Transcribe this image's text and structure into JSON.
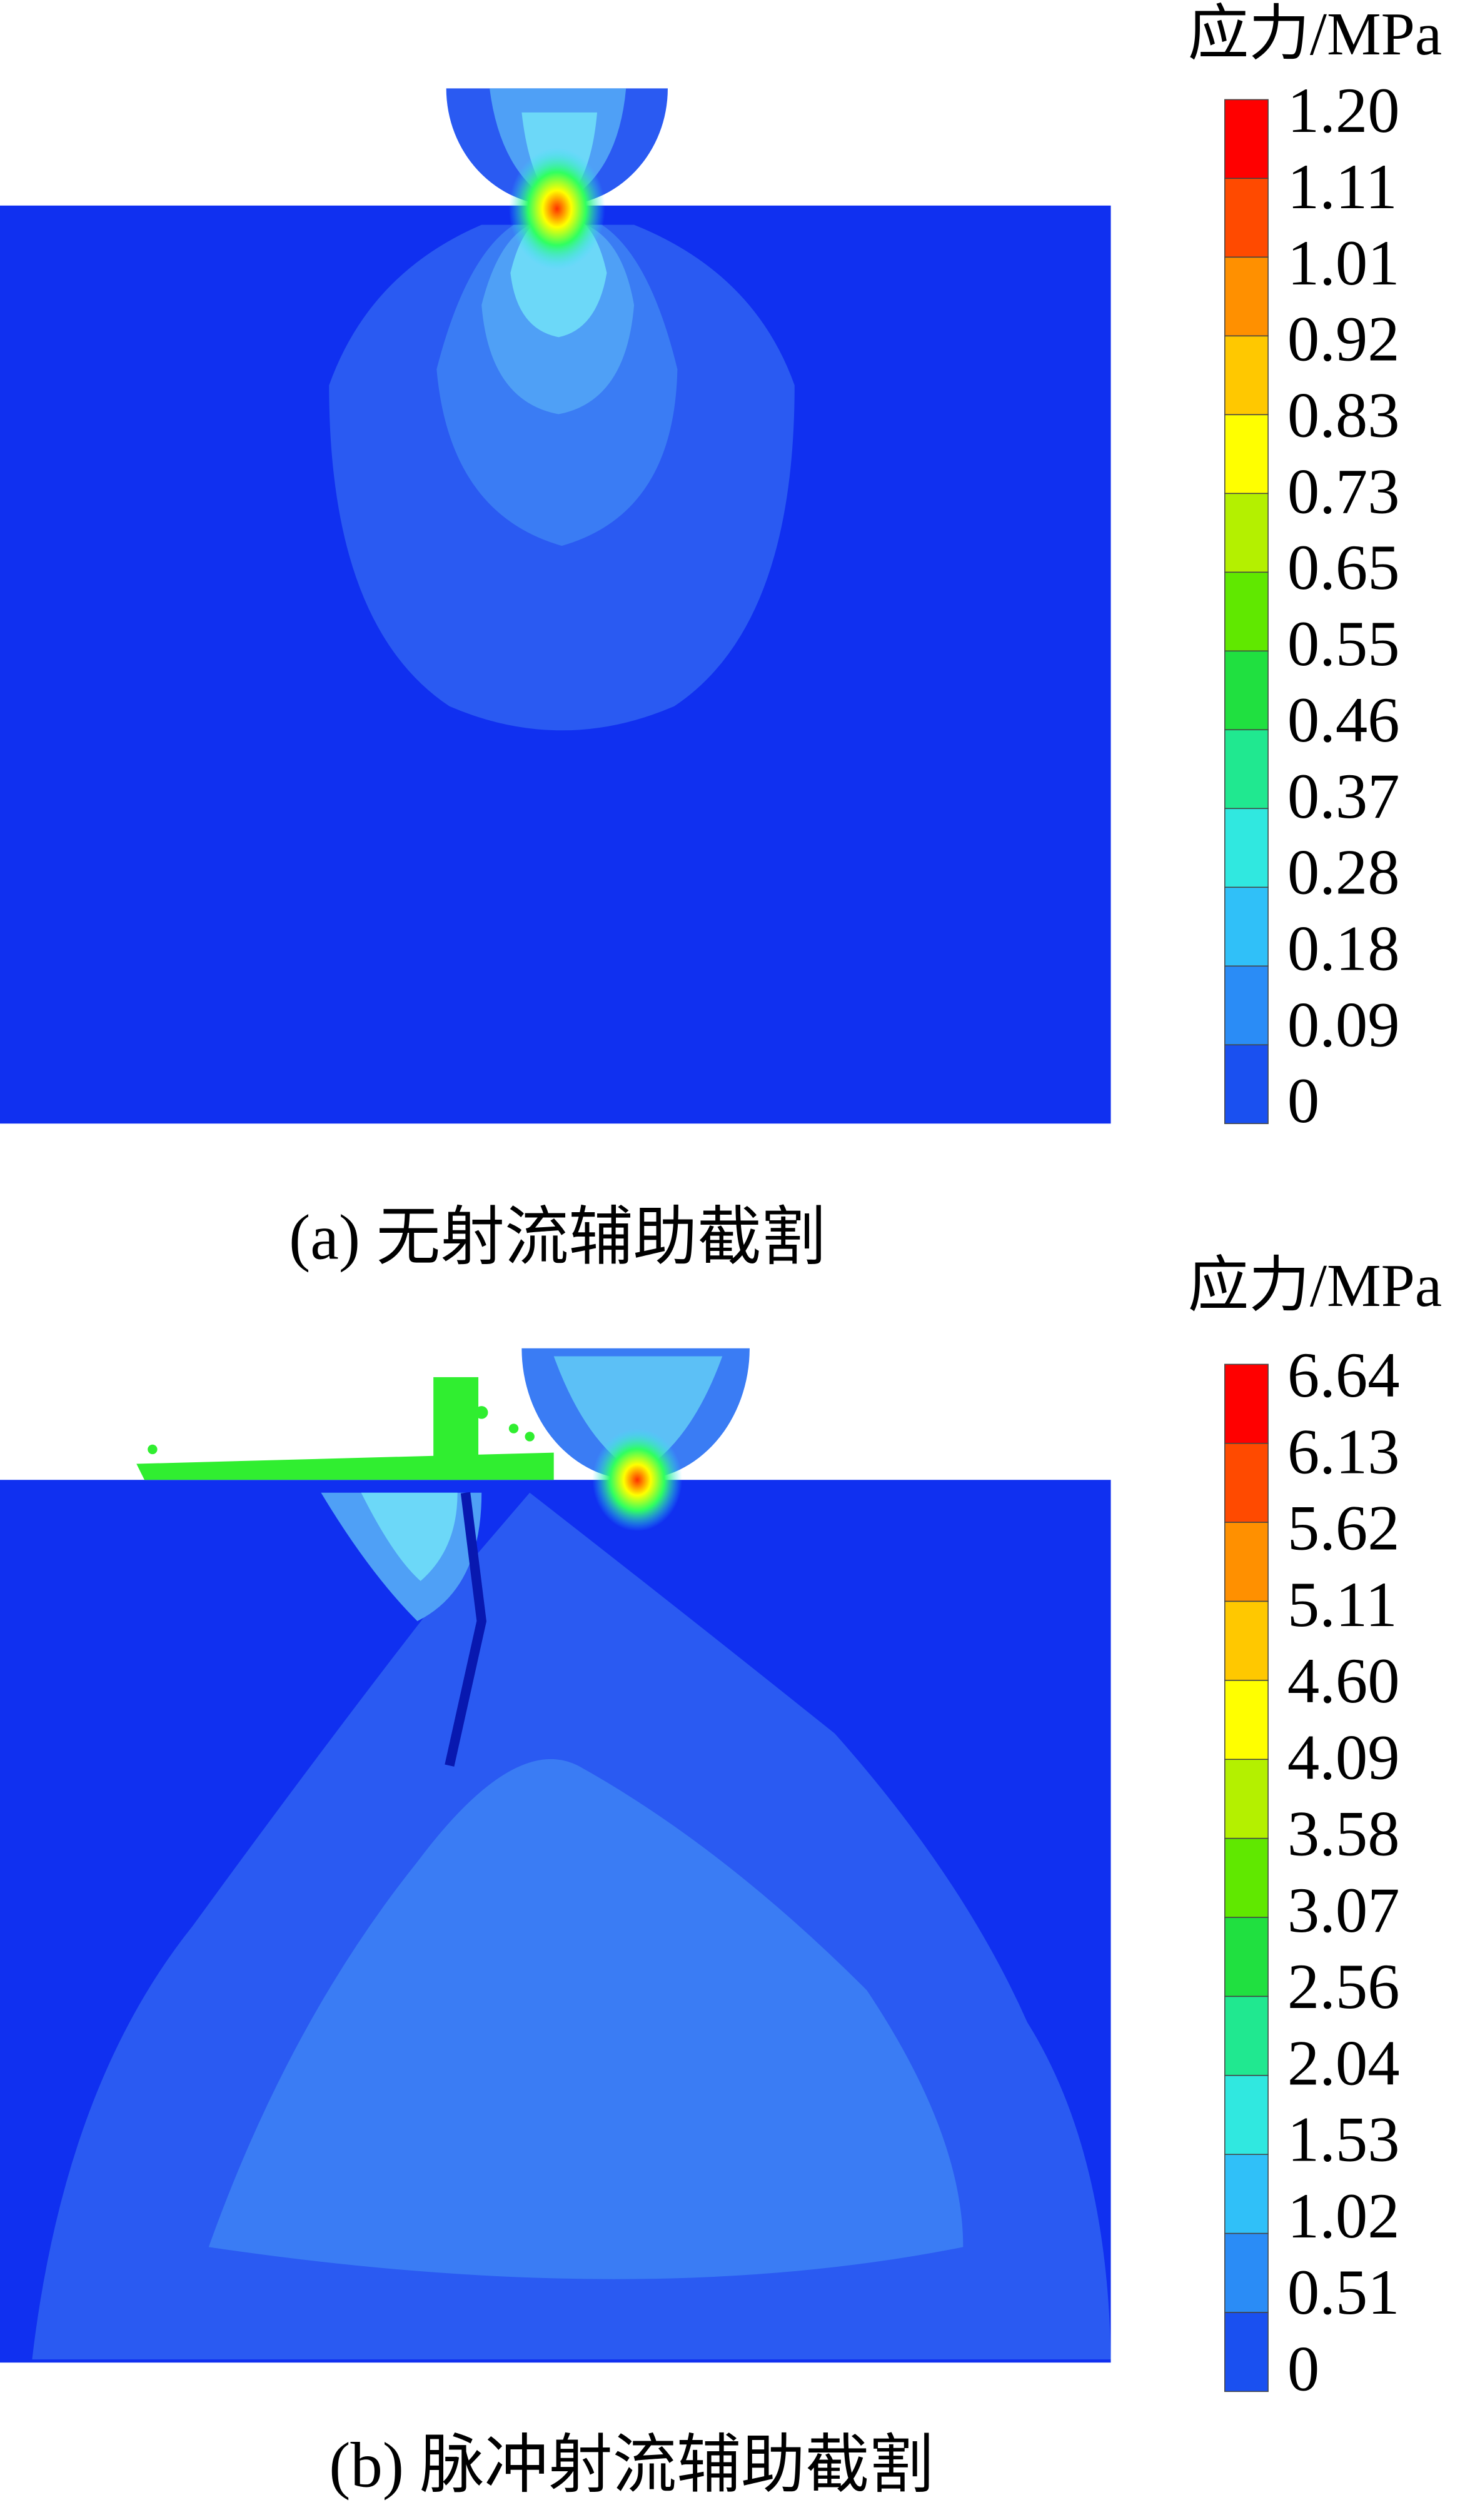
{
  "panels": [
    {
      "caption": "(a) 无射流辅助截割",
      "colorbar": {
        "title": "应力/MPa",
        "labels": [
          "1.20",
          "1.11",
          "1.01",
          "0.92",
          "0.83",
          "0.73",
          "0.65",
          "0.55",
          "0.46",
          "0.37",
          "0.28",
          "0.18",
          "0.09",
          "0"
        ]
      }
    },
    {
      "caption": "(b) 脉冲射流辅助截割",
      "colorbar": {
        "title": "应力/MPa",
        "labels": [
          "6.64",
          "6.13",
          "5.62",
          "5.11",
          "4.60",
          "4.09",
          "3.58",
          "3.07",
          "2.56",
          "2.04",
          "1.53",
          "1.02",
          "0.51",
          "0"
        ]
      }
    }
  ]
}
